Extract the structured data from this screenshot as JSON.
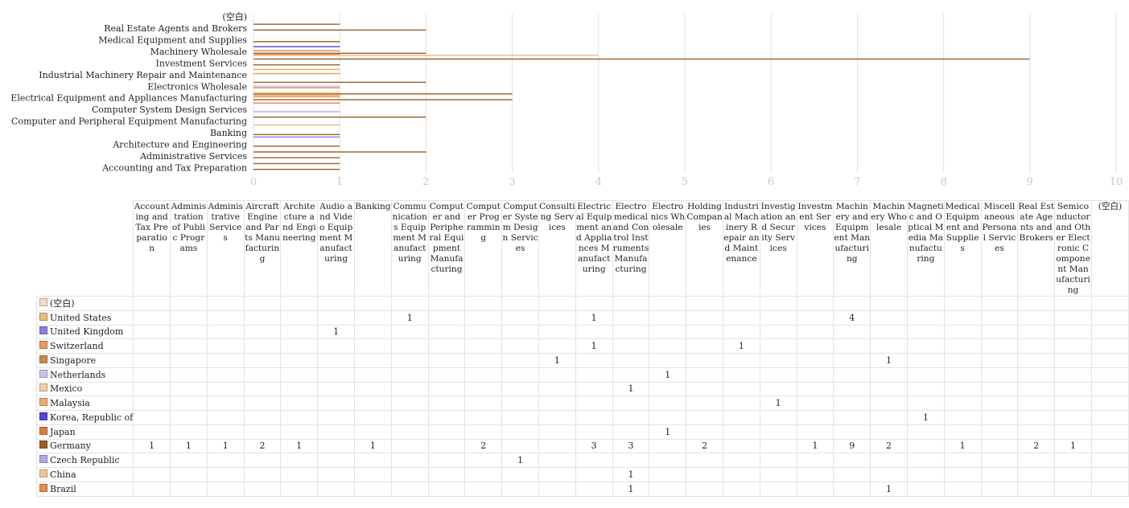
{
  "colors": {
    "(空白)": "#f6dcc4",
    "United States": "#f0b97e",
    "United Kingdom": "#8a7be6",
    "Switzerland": "#e99a5c",
    "Singapore": "#c98a4c",
    "Netherlands": "#cfc3f0",
    "Mexico": "#f3cfa8",
    "Malaysia": "#efaa70",
    "Korea, Republic of": "#5646d6",
    "Japan": "#e07a3c",
    "Germany": "#9b5e2c",
    "Czech Republic": "#b7a6ee",
    "China": "#f2c89a",
    "Brazil": "#e88c4a",
    "grid": "#e3e3e3",
    "axis_text": "#c8c8c8"
  },
  "chart_data": {
    "type": "bar",
    "orientation": "horizontal",
    "grid": true,
    "xlim": [
      0,
      10
    ],
    "xticks": [
      "0",
      "1",
      "2",
      "3",
      "4",
      "5",
      "6",
      "7",
      "8",
      "9",
      "10"
    ],
    "categories_bottom_to_top": [
      "Accounting and Tax Preparation",
      "Administration of Public Programs",
      "Administrative Services",
      "Aircraft Engine and Parts Manufacturing",
      "Architecture and Engineering",
      "Audio and Video Equipment Manufacturing",
      "Banking",
      "Communications Equipment Manufacturing",
      "Computer and Peripheral Equipment Manufacturing",
      "Computer Programming",
      "Computer System Design Services",
      "Consulting Services",
      "Electrical Equipment and Appliances Manufacturing",
      "Electromedical and Control Instruments Manufacturing",
      "Electronics Wholesale",
      "Holding Companies",
      "Industrial Machinery Repair and Maintenance",
      "Investigation and Security Services",
      "Investment Services",
      "Machinery and Equipment Manufacturing",
      "Machinery Wholesale",
      "Magnetic and Optical Media Manufacturing",
      "Medical Equipment and Supplies",
      "Miscellaneous Personal Services",
      "Real Estate Agents and Brokers",
      "Semiconductor and Other Electronic Component Manufacturing",
      "(空白)"
    ],
    "ytick_labels_bottom_to_top": [
      "Accounting and Tax Preparation",
      "Administrative Services",
      "Architecture and Engineering",
      "Banking",
      "Computer and Peripheral Equipment Manufacturing",
      "Computer System Design Services",
      "Electrical Equipment and Appliances Manufacturing",
      "Electronics Wholesale",
      "Industrial Machinery Repair and Maintenance",
      "Investment Services",
      "Machinery Wholesale",
      "Medical Equipment and Supplies",
      "Real Estate Agents and Brokers",
      "(空白)"
    ],
    "series_order": [
      "Brazil",
      "China",
      "Czech Republic",
      "Germany",
      "Japan",
      "Korea, Republic of",
      "Malaysia",
      "Mexico",
      "Netherlands",
      "Singapore",
      "Switzerland",
      "United Kingdom",
      "United States",
      "(空白)"
    ],
    "series": [
      {
        "name": "Brazil",
        "values": [
          null,
          null,
          null,
          null,
          null,
          null,
          null,
          null,
          null,
          null,
          null,
          null,
          null,
          1,
          null,
          null,
          null,
          null,
          null,
          null,
          1,
          null,
          null,
          null,
          null,
          null,
          null
        ]
      },
      {
        "name": "China",
        "values": [
          null,
          null,
          null,
          null,
          null,
          null,
          null,
          null,
          null,
          null,
          null,
          null,
          null,
          1,
          null,
          null,
          null,
          null,
          null,
          null,
          null,
          null,
          null,
          null,
          null,
          null,
          null
        ]
      },
      {
        "name": "Czech Republic",
        "values": [
          null,
          null,
          null,
          null,
          null,
          null,
          null,
          null,
          null,
          null,
          1,
          null,
          null,
          null,
          null,
          null,
          null,
          null,
          null,
          null,
          null,
          null,
          null,
          null,
          null,
          null,
          null
        ]
      },
      {
        "name": "Germany",
        "values": [
          1,
          1,
          1,
          2,
          1,
          null,
          1,
          null,
          null,
          2,
          null,
          null,
          3,
          3,
          null,
          2,
          null,
          null,
          1,
          9,
          2,
          null,
          1,
          null,
          2,
          1,
          null
        ]
      },
      {
        "name": "Japan",
        "values": [
          null,
          null,
          null,
          null,
          null,
          null,
          null,
          null,
          null,
          null,
          null,
          null,
          null,
          null,
          1,
          null,
          null,
          null,
          null,
          null,
          null,
          null,
          null,
          null,
          null,
          null,
          null
        ]
      },
      {
        "name": "Korea, Republic of",
        "values": [
          null,
          null,
          null,
          null,
          null,
          null,
          null,
          null,
          null,
          null,
          null,
          null,
          null,
          null,
          null,
          null,
          null,
          null,
          null,
          null,
          null,
          1,
          null,
          null,
          null,
          null,
          null
        ]
      },
      {
        "name": "Malaysia",
        "values": [
          null,
          null,
          null,
          null,
          null,
          null,
          null,
          null,
          null,
          null,
          null,
          null,
          null,
          null,
          null,
          null,
          null,
          1,
          null,
          null,
          null,
          null,
          null,
          null,
          null,
          null,
          null
        ]
      },
      {
        "name": "Mexico",
        "values": [
          null,
          null,
          null,
          null,
          null,
          null,
          null,
          null,
          null,
          null,
          null,
          null,
          null,
          1,
          null,
          null,
          null,
          null,
          null,
          null,
          null,
          null,
          null,
          null,
          null,
          null,
          null
        ]
      },
      {
        "name": "Netherlands",
        "values": [
          null,
          null,
          null,
          null,
          null,
          null,
          null,
          null,
          null,
          null,
          null,
          null,
          null,
          null,
          1,
          null,
          null,
          null,
          null,
          null,
          null,
          null,
          null,
          null,
          null,
          null,
          null
        ]
      },
      {
        "name": "Singapore",
        "values": [
          null,
          null,
          null,
          null,
          null,
          null,
          null,
          null,
          null,
          null,
          null,
          1,
          null,
          null,
          null,
          null,
          null,
          null,
          null,
          null,
          1,
          null,
          null,
          null,
          null,
          null,
          null
        ]
      },
      {
        "name": "Switzerland",
        "values": [
          null,
          null,
          null,
          null,
          null,
          null,
          null,
          null,
          null,
          null,
          null,
          null,
          1,
          null,
          null,
          null,
          1,
          null,
          null,
          null,
          null,
          null,
          null,
          null,
          null,
          null,
          null
        ]
      },
      {
        "name": "United Kingdom",
        "values": [
          null,
          null,
          null,
          null,
          null,
          1,
          null,
          null,
          null,
          null,
          null,
          null,
          null,
          null,
          null,
          null,
          null,
          null,
          null,
          null,
          null,
          null,
          null,
          null,
          null,
          null,
          null
        ]
      },
      {
        "name": "United States",
        "values": [
          null,
          null,
          null,
          null,
          null,
          null,
          null,
          1,
          null,
          null,
          null,
          null,
          1,
          null,
          null,
          null,
          null,
          null,
          null,
          4,
          null,
          null,
          null,
          null,
          null,
          null,
          null
        ]
      },
      {
        "name": "(空白)",
        "values": [
          null,
          null,
          null,
          null,
          null,
          null,
          null,
          null,
          null,
          null,
          null,
          null,
          null,
          null,
          null,
          null,
          null,
          null,
          null,
          null,
          null,
          null,
          null,
          null,
          null,
          null,
          null
        ]
      }
    ]
  },
  "table": {
    "columns": [
      "Accounting and Tax Preparation",
      "Administration of Public Programs",
      "Administrative Services",
      "Aircraft Engine and Parts Manufacturing",
      "Architecture and Engineering",
      "Audio and Video Equipment Manufacturing",
      "Banking",
      "Communications Equipment Manufacturing",
      "Computer and Peripheral Equipment Manufacturing",
      "Computer Programming",
      "Computer System Design Services",
      "Consulting Services",
      "Electrical Equipment and Appliances Manufacturing",
      "Electromedical and Control Instruments Manufacturing",
      "Electronics Wholesale",
      "Holding Companies",
      "Industrial Machinery Repair and Maintenance",
      "Investigation and Security Services",
      "Investment Services",
      "Machinery and Equipment Manufacturing",
      "Machinery Wholesale",
      "Magnetic and Optical Media Manufacturing",
      "Medical Equipment and Supplies",
      "Miscellaneous Personal Services",
      "Real Estate Agents and Brokers",
      "Semiconductor and Other Electronic Component Manufacturing",
      "(空白)"
    ],
    "rows": [
      {
        "label": "(空白)",
        "cells": [
          "",
          "",
          "",
          "",
          "",
          "",
          "",
          "",
          "",
          "",
          "",
          "",
          "",
          "",
          "",
          "",
          "",
          "",
          "",
          "",
          "",
          "",
          "",
          "",
          "",
          "",
          ""
        ]
      },
      {
        "label": "United States",
        "cells": [
          "",
          "",
          "",
          "",
          "",
          "",
          "",
          "1",
          "",
          "",
          "",
          "",
          "1",
          "",
          "",
          "",
          "",
          "",
          "",
          "4",
          "",
          "",
          "",
          "",
          "",
          "",
          ""
        ]
      },
      {
        "label": "United Kingdom",
        "cells": [
          "",
          "",
          "",
          "",
          "",
          "1",
          "",
          "",
          "",
          "",
          "",
          "",
          "",
          "",
          "",
          "",
          "",
          "",
          "",
          "",
          "",
          "",
          "",
          "",
          "",
          "",
          ""
        ]
      },
      {
        "label": "Switzerland",
        "cells": [
          "",
          "",
          "",
          "",
          "",
          "",
          "",
          "",
          "",
          "",
          "",
          "",
          "1",
          "",
          "",
          "",
          "1",
          "",
          "",
          "",
          "",
          "",
          "",
          "",
          "",
          "",
          ""
        ]
      },
      {
        "label": "Singapore",
        "cells": [
          "",
          "",
          "",
          "",
          "",
          "",
          "",
          "",
          "",
          "",
          "",
          "1",
          "",
          "",
          "",
          "",
          "",
          "",
          "",
          "",
          "1",
          "",
          "",
          "",
          "",
          "",
          ""
        ]
      },
      {
        "label": "Netherlands",
        "cells": [
          "",
          "",
          "",
          "",
          "",
          "",
          "",
          "",
          "",
          "",
          "",
          "",
          "",
          "",
          "1",
          "",
          "",
          "",
          "",
          "",
          "",
          "",
          "",
          "",
          "",
          "",
          ""
        ]
      },
      {
        "label": "Mexico",
        "cells": [
          "",
          "",
          "",
          "",
          "",
          "",
          "",
          "",
          "",
          "",
          "",
          "",
          "",
          "1",
          "",
          "",
          "",
          "",
          "",
          "",
          "",
          "",
          "",
          "",
          "",
          "",
          ""
        ]
      },
      {
        "label": "Malaysia",
        "cells": [
          "",
          "",
          "",
          "",
          "",
          "",
          "",
          "",
          "",
          "",
          "",
          "",
          "",
          "",
          "",
          "",
          "",
          "1",
          "",
          "",
          "",
          "",
          "",
          "",
          "",
          "",
          ""
        ]
      },
      {
        "label": "Korea, Republic of",
        "cells": [
          "",
          "",
          "",
          "",
          "",
          "",
          "",
          "",
          "",
          "",
          "",
          "",
          "",
          "",
          "",
          "",
          "",
          "",
          "",
          "",
          "",
          "1",
          "",
          "",
          "",
          "",
          ""
        ]
      },
      {
        "label": "Japan",
        "cells": [
          "",
          "",
          "",
          "",
          "",
          "",
          "",
          "",
          "",
          "",
          "",
          "",
          "",
          "",
          "1",
          "",
          "",
          "",
          "",
          "",
          "",
          "",
          "",
          "",
          "",
          "",
          ""
        ]
      },
      {
        "label": "Germany",
        "cells": [
          "1",
          "1",
          "1",
          "2",
          "1",
          "",
          "1",
          "",
          "",
          "2",
          "",
          "",
          "3",
          "3",
          "",
          "2",
          "",
          "",
          "1",
          "9",
          "2",
          "",
          "1",
          "",
          "2",
          "1",
          ""
        ]
      },
      {
        "label": "Czech Republic",
        "cells": [
          "",
          "",
          "",
          "",
          "",
          "",
          "",
          "",
          "",
          "",
          "1",
          "",
          "",
          "",
          "",
          "",
          "",
          "",
          "",
          "",
          "",
          "",
          "",
          "",
          "",
          "",
          ""
        ]
      },
      {
        "label": "China",
        "cells": [
          "",
          "",
          "",
          "",
          "",
          "",
          "",
          "",
          "",
          "",
          "",
          "",
          "",
          "1",
          "",
          "",
          "",
          "",
          "",
          "",
          "",
          "",
          "",
          "",
          "",
          "",
          ""
        ]
      },
      {
        "label": "Brazil",
        "cells": [
          "",
          "",
          "",
          "",
          "",
          "",
          "",
          "",
          "",
          "",
          "",
          "",
          "",
          "1",
          "",
          "",
          "",
          "",
          "",
          "",
          "1",
          "",
          "",
          "",
          "",
          "",
          ""
        ]
      }
    ]
  }
}
